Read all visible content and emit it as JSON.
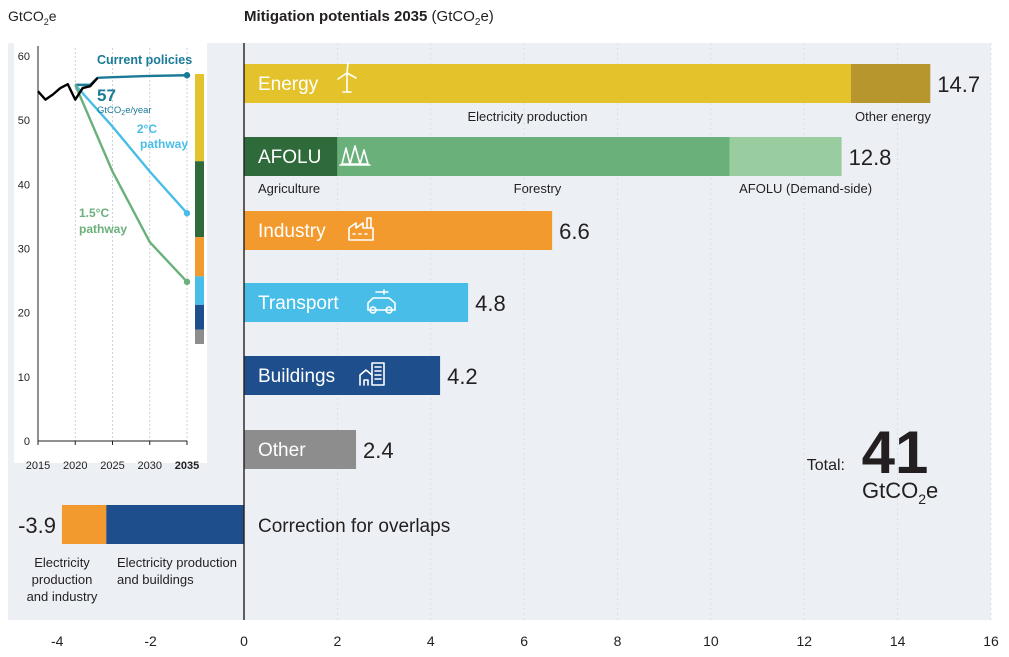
{
  "header": {
    "left_unit_main": "GtCO",
    "left_unit_sub": "2",
    "left_unit_end": "e",
    "title_bold": "Mitigation potentials 2035",
    "title_unit_a": "(GtCO",
    "title_unit_sub": "2",
    "title_unit_b": "e)"
  },
  "colors": {
    "energy": "#e4c22b",
    "energy_other": "#b8962e",
    "afolu_agri": "#2f6b3a",
    "afolu_forest": "#6ab07a",
    "afolu_demand": "#99cc9f",
    "industry": "#f39a2e",
    "transport": "#48bde8",
    "buildings": "#1f4e8c",
    "other": "#8d8d8d",
    "panel_bg": "#ecf0f4",
    "current_policies": "#1a7a97",
    "pathway_2c": "#48bde8",
    "pathway_15c": "#6ab07a",
    "history": "#000000"
  },
  "chart_data": [
    {
      "type": "line",
      "x": [
        2015,
        2020,
        2025,
        2030,
        2035
      ],
      "ylim": [
        0,
        60
      ],
      "xlim": [
        2015,
        2035
      ],
      "series": [
        {
          "name": "Current policies",
          "color_key": "current_policies",
          "points": [
            [
              2020,
              55.5
            ],
            [
              2022,
              55.5
            ],
            [
              2023,
              56.6
            ],
            [
              2025,
              56.7
            ],
            [
              2030,
              56.9
            ],
            [
              2035,
              57
            ]
          ]
        },
        {
          "name": "2°C pathway",
          "color_key": "pathway_2c",
          "points": [
            [
              2020,
              55.5
            ],
            [
              2025,
              49
            ],
            [
              2030,
              42
            ],
            [
              2035,
              35.5
            ]
          ]
        },
        {
          "name": "1.5°C pathway",
          "color_key": "pathway_15c",
          "points": [
            [
              2020,
              55.5
            ],
            [
              2025,
              42
            ],
            [
              2030,
              31
            ],
            [
              2035,
              24.8
            ]
          ]
        },
        {
          "name": "",
          "color_key": "history",
          "points": [
            [
              2015,
              54.5
            ],
            [
              2016,
              53.2
            ],
            [
              2017,
              54.0
            ],
            [
              2018,
              55.0
            ],
            [
              2019,
              55.6
            ],
            [
              2020,
              53.2
            ],
            [
              2021,
              55.0
            ],
            [
              2022,
              55.3
            ],
            [
              2023,
              56.6
            ]
          ]
        }
      ],
      "labels": {
        "current_policies": "Current policies",
        "value_main": "57",
        "value_unit_a": "GtCO",
        "value_unit_sub": "2",
        "value_unit_b": "e/year",
        "pathway_2c_line1": "2°C",
        "pathway_2c_line2": "pathway",
        "pathway_15c_line1": "1.5°C",
        "pathway_15c_line2": "pathway"
      },
      "y_ticks": [
        "0",
        "10",
        "20",
        "30",
        "40",
        "50",
        "60"
      ],
      "x_ticks": [
        "2015",
        "2020",
        "2025",
        "2030",
        "2035"
      ],
      "stack_legend": [
        {
          "key": "energy",
          "value": 14.7
        },
        {
          "key": "afolu_agri",
          "value": 12.8
        },
        {
          "key": "industry",
          "value": 6.6
        },
        {
          "key": "transport",
          "value": 4.8
        },
        {
          "key": "buildings",
          "value": 4.2
        },
        {
          "key": "other",
          "value": 2.4
        }
      ]
    },
    {
      "type": "bar",
      "xlim": [
        -5.4,
        16
      ],
      "x_ticks": [
        "-4",
        "-2",
        "0",
        "2",
        "4",
        "6",
        "8",
        "10",
        "12",
        "14",
        "16"
      ],
      "bars": [
        {
          "label": "Energy",
          "icon": "wind-turbine-icon",
          "total": "14.7",
          "segments": [
            {
              "name": "Electricity production",
              "start": 0,
              "end": 13,
              "color_key": "energy"
            },
            {
              "name": "Other energy",
              "start": 13,
              "end": 14.7,
              "color_key": "energy_other"
            }
          ]
        },
        {
          "label": "AFOLU",
          "icon": "trees-icon",
          "total": "12.8",
          "segments": [
            {
              "name": "Agriculture",
              "start": 0,
              "end": 2,
              "color_key": "afolu_agri"
            },
            {
              "name": "Forestry",
              "start": 2,
              "end": 10.4,
              "color_key": "afolu_forest"
            },
            {
              "name": "AFOLU (Demand-side)",
              "start": 10.4,
              "end": 12.8,
              "color_key": "afolu_demand"
            }
          ]
        },
        {
          "label": "Industry",
          "icon": "factory-icon",
          "total": "6.6",
          "segments": [
            {
              "name": "",
              "start": 0,
              "end": 6.6,
              "color_key": "industry"
            }
          ]
        },
        {
          "label": "Transport",
          "icon": "electric-car-icon",
          "total": "4.8",
          "segments": [
            {
              "name": "",
              "start": 0,
              "end": 4.8,
              "color_key": "transport"
            }
          ]
        },
        {
          "label": "Buildings",
          "icon": "building-icon",
          "total": "4.2",
          "segments": [
            {
              "name": "",
              "start": 0,
              "end": 4.2,
              "color_key": "buildings"
            }
          ]
        },
        {
          "label": "Other",
          "icon": "",
          "total": "2.4",
          "segments": [
            {
              "name": "",
              "start": 0,
              "end": 2.4,
              "color_key": "other"
            }
          ]
        }
      ],
      "correction": {
        "label": "Correction for overlaps",
        "total": "-3.9",
        "segments": [
          {
            "name_lines": [
              "Electricity",
              "production",
              "and industry"
            ],
            "start": -3.9,
            "end": -2.95,
            "color_key": "industry"
          },
          {
            "name_lines": [
              "Electricity production",
              "and buildings"
            ],
            "start": -2.95,
            "end": 0,
            "color_key": "buildings"
          }
        ]
      },
      "total": {
        "label": "Total:",
        "value": "41",
        "unit_a": "GtCO",
        "unit_sub": "2",
        "unit_b": "e"
      }
    }
  ]
}
